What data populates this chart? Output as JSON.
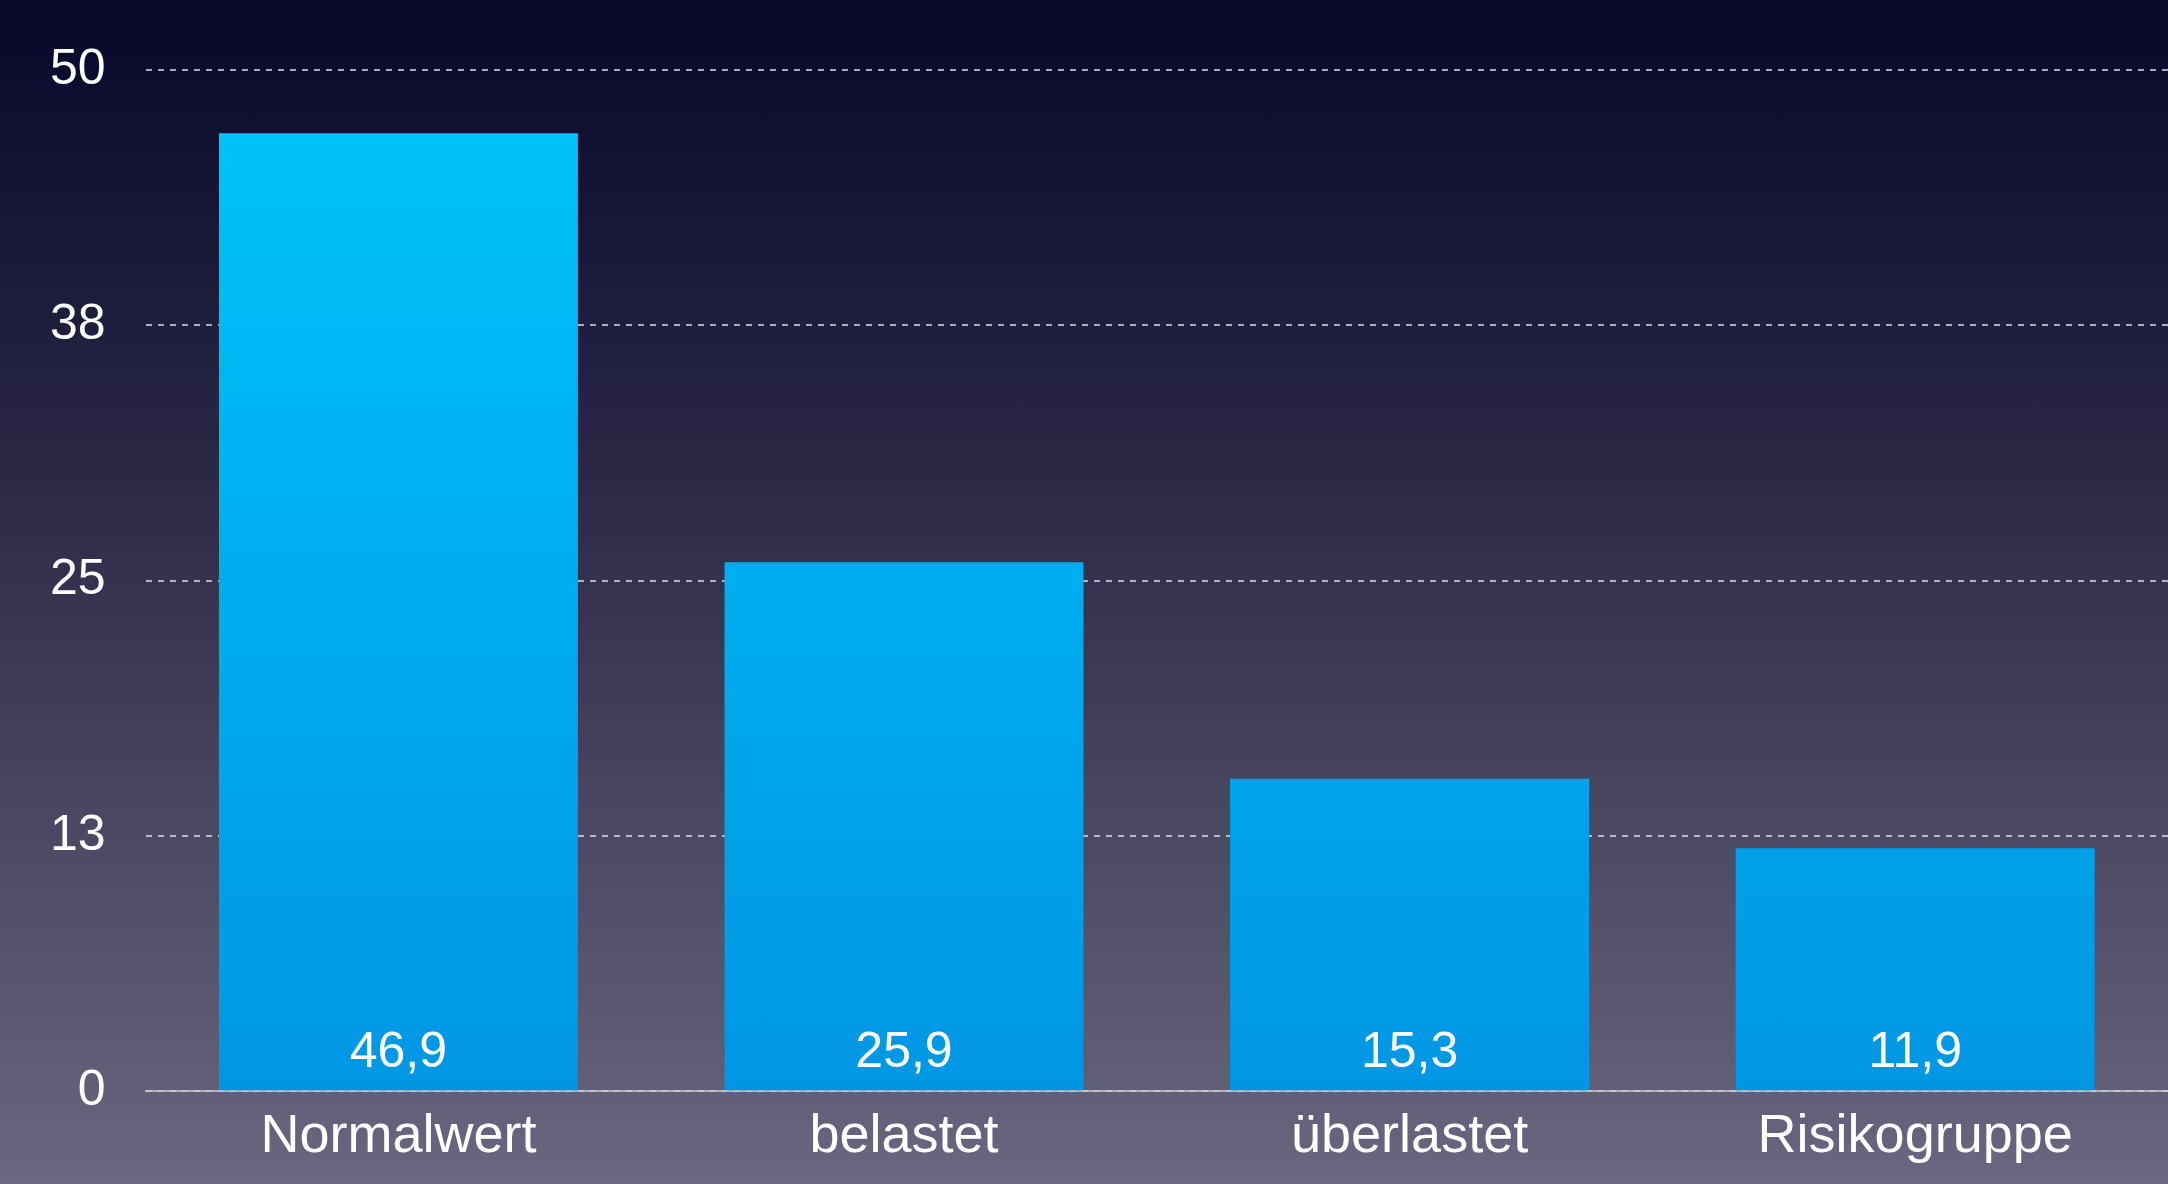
{
  "chart_data": {
    "type": "bar",
    "categories": [
      "Normalwert",
      "belastet",
      "überlastet",
      "Risikogruppe"
    ],
    "values": [
      46.9,
      25.9,
      15.3,
      11.9
    ],
    "value_labels": [
      "46,9",
      "25,9",
      "15,3",
      "11,9"
    ],
    "color": "#0096e4",
    "ylim": [
      0,
      50
    ],
    "yticks": [
      0,
      {
        "value": 12.5,
        "label": "13"
      },
      25,
      {
        "value": 37.5,
        "label": "38"
      },
      50
    ],
    "grid": "y"
  }
}
